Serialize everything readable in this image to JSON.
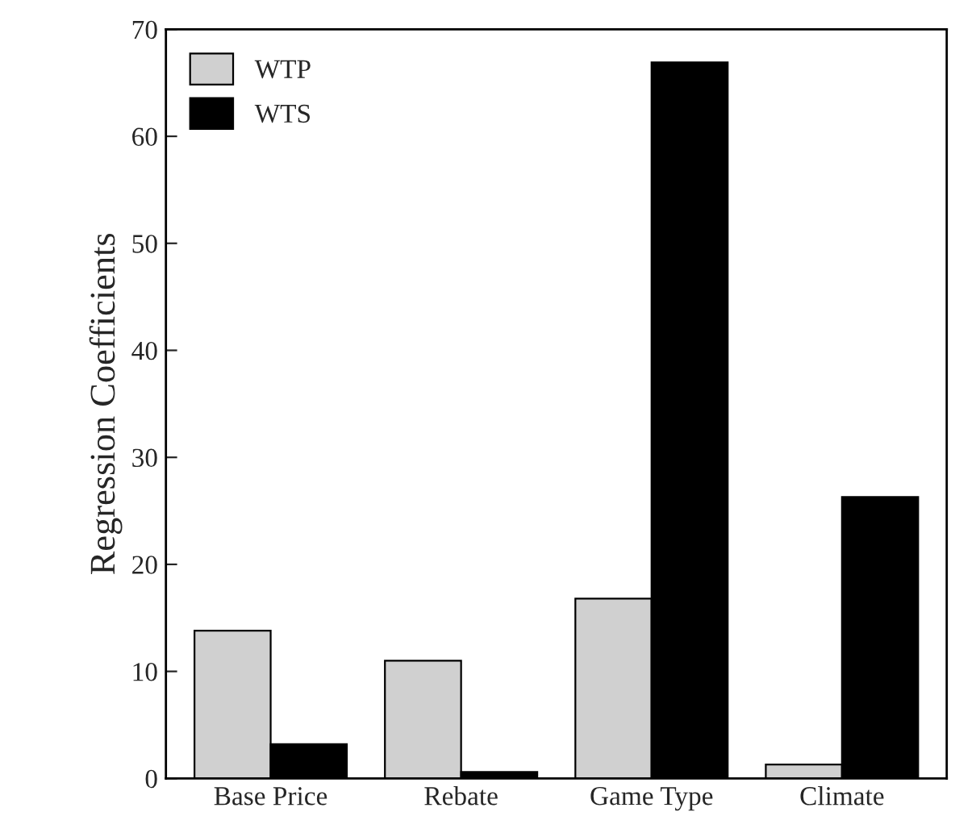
{
  "chart_data": {
    "type": "bar",
    "ylabel": "Regression Coefficients",
    "categories": [
      "Base Price",
      "Rebate",
      "Game Type",
      "Climate"
    ],
    "series": [
      {
        "name": "WTP",
        "color": "#d0d0d0",
        "values": [
          13.8,
          11.0,
          16.8,
          1.3
        ]
      },
      {
        "name": "WTS",
        "color": "#000000",
        "values": [
          3.2,
          0.6,
          66.9,
          26.3
        ]
      }
    ],
    "ylim": [
      0,
      70
    ],
    "yticks": [
      0,
      10,
      20,
      30,
      40,
      50,
      60,
      70
    ],
    "grid": false,
    "legend": "top left"
  }
}
